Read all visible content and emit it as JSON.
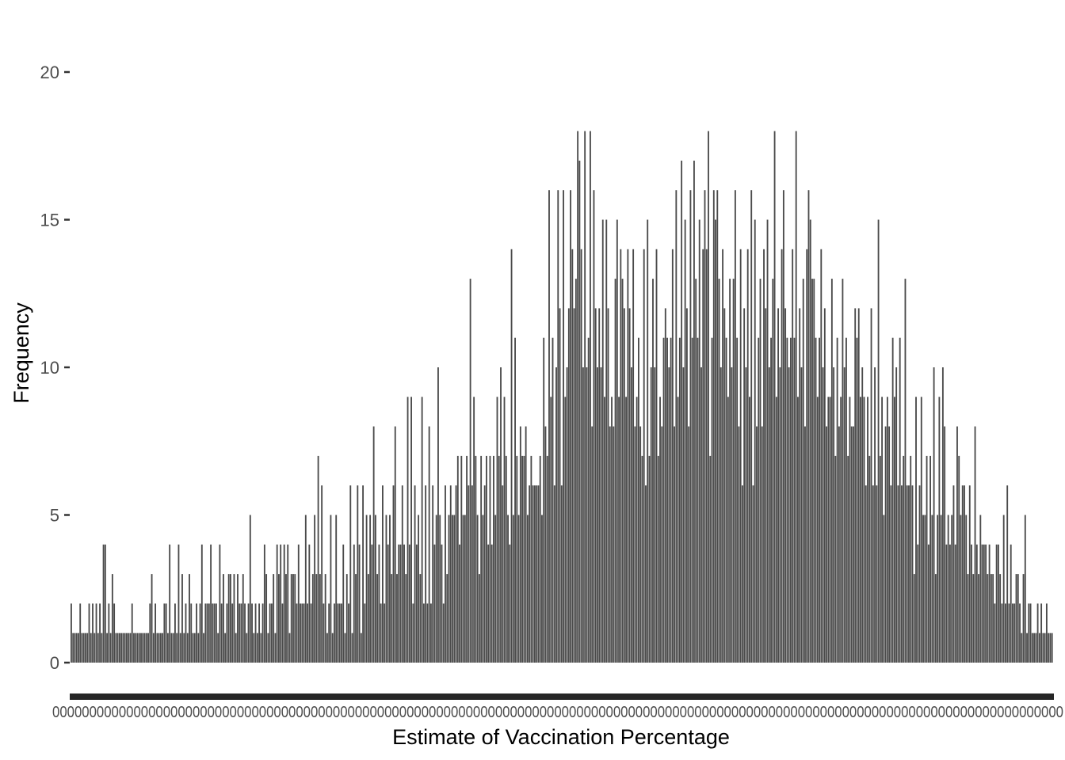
{
  "chart_data": {
    "type": "bar",
    "title": "",
    "xlabel": "Estimate of Vaccination Percentage",
    "ylabel": "Frequency",
    "ylim": [
      0,
      21.5
    ],
    "yticks": [
      "0",
      "5",
      "10",
      "15",
      "20"
    ],
    "x_tick_labels_note": "overlapping unreadable category labels",
    "grid": false,
    "legend": "none",
    "bar_color": "#4a4a4a",
    "values": [
      2,
      1,
      1,
      1,
      1,
      2,
      1,
      1,
      1,
      1,
      2,
      1,
      2,
      1,
      2,
      1,
      2,
      1,
      4,
      4,
      1,
      2,
      1,
      3,
      2,
      1,
      1,
      1,
      1,
      1,
      1,
      1,
      1,
      1,
      2,
      1,
      1,
      1,
      1,
      1,
      1,
      1,
      1,
      1,
      2,
      3,
      1,
      2,
      1,
      1,
      1,
      1,
      2,
      2,
      1,
      4,
      1,
      1,
      2,
      1,
      4,
      1,
      3,
      1,
      2,
      1,
      3,
      2,
      1,
      1,
      2,
      1,
      2,
      4,
      1,
      2,
      2,
      2,
      4,
      2,
      2,
      2,
      1,
      4,
      2,
      3,
      1,
      2,
      3,
      3,
      2,
      3,
      1,
      3,
      2,
      2,
      3,
      2,
      1,
      2,
      5,
      2,
      1,
      2,
      1,
      2,
      1,
      2,
      4,
      3,
      1,
      2,
      2,
      3,
      1,
      4,
      3,
      4,
      2,
      4,
      3,
      4,
      1,
      3,
      3,
      3,
      2,
      4,
      2,
      2,
      2,
      5,
      2,
      4,
      2,
      3,
      5,
      3,
      7,
      3,
      6,
      2,
      3,
      1,
      2,
      5,
      1,
      2,
      5,
      2,
      2,
      2,
      4,
      1,
      3,
      2,
      6,
      1,
      4,
      3,
      6,
      4,
      1,
      6,
      2,
      5,
      3,
      5,
      4,
      8,
      5,
      3,
      4,
      2,
      6,
      2,
      5,
      4,
      5,
      3,
      6,
      8,
      3,
      4,
      4,
      6,
      4,
      3,
      9,
      4,
      9,
      2,
      6,
      4,
      5,
      3,
      9,
      2,
      6,
      2,
      8,
      2,
      6,
      4,
      5,
      10,
      5,
      4,
      2,
      6,
      3,
      5,
      6,
      5,
      5,
      6,
      7,
      4,
      7,
      5,
      5,
      7,
      6,
      13,
      6,
      9,
      7,
      5,
      3,
      7,
      5,
      6,
      7,
      4,
      7,
      4,
      7,
      5,
      9,
      7,
      10,
      6,
      9,
      7,
      5,
      4,
      14,
      5,
      11,
      7,
      5,
      8,
      7,
      7,
      8,
      5,
      6,
      7,
      6,
      6,
      6,
      6,
      7,
      5,
      11,
      8,
      7,
      16,
      9,
      11,
      6,
      10,
      16,
      12,
      6,
      16,
      9,
      10,
      12,
      16,
      14,
      12,
      13,
      18,
      17,
      14,
      10,
      18,
      10,
      11,
      18,
      8,
      16,
      12,
      10,
      12,
      10,
      15,
      9,
      15,
      12,
      8,
      9,
      8,
      13,
      15,
      9,
      14,
      13,
      12,
      9,
      14,
      12,
      10,
      14,
      8,
      9,
      11,
      8,
      7,
      14,
      6,
      15,
      7,
      10,
      13,
      10,
      14,
      7,
      9,
      8,
      11,
      12,
      11,
      10,
      11,
      14,
      8,
      16,
      9,
      11,
      17,
      10,
      15,
      12,
      8,
      16,
      11,
      17,
      13,
      11,
      15,
      10,
      14,
      16,
      14,
      18,
      7,
      11,
      16,
      15,
      16,
      13,
      10,
      14,
      12,
      11,
      9,
      13,
      10,
      13,
      16,
      11,
      8,
      14,
      6,
      12,
      10,
      14,
      9,
      16,
      6,
      15,
      8,
      11,
      13,
      8,
      14,
      12,
      15,
      10,
      11,
      13,
      18,
      9,
      12,
      10,
      14,
      16,
      12,
      11,
      10,
      11,
      14,
      11,
      18,
      9,
      12,
      10,
      13,
      8,
      14,
      16,
      15,
      13,
      13,
      11,
      9,
      11,
      14,
      10,
      12,
      8,
      9,
      9,
      13,
      10,
      7,
      11,
      8,
      9,
      13,
      10,
      11,
      7,
      9,
      8,
      8,
      12,
      11,
      12,
      9,
      10,
      9,
      6,
      9,
      7,
      12,
      6,
      10,
      6,
      15,
      7,
      9,
      5,
      8,
      9,
      8,
      6,
      11,
      9,
      10,
      6,
      11,
      6,
      7,
      13,
      6,
      6,
      7,
      6,
      3,
      9,
      4,
      6,
      9,
      5,
      5,
      7,
      4,
      7,
      5,
      10,
      3,
      5,
      9,
      5,
      10,
      8,
      4,
      5,
      4,
      5,
      6,
      4,
      8,
      7,
      5,
      6,
      6,
      5,
      3,
      6,
      4,
      3,
      8,
      4,
      3,
      5,
      4,
      4,
      4,
      3,
      4,
      3,
      3,
      2,
      4,
      4,
      3,
      2,
      5,
      2,
      6,
      2,
      4,
      2,
      2,
      3,
      3,
      2,
      1,
      3,
      5,
      1,
      2,
      2,
      1,
      1,
      1,
      2,
      1,
      2,
      1,
      1,
      2,
      1,
      1,
      1
    ]
  }
}
